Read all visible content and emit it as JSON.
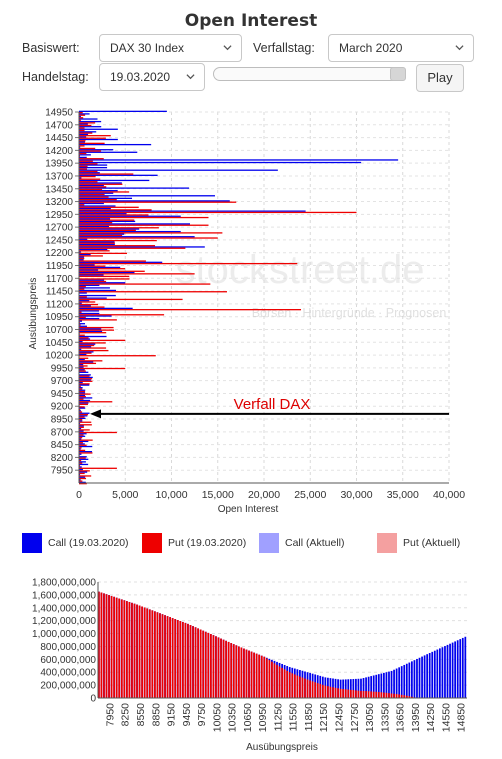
{
  "page": {
    "title": "Open Interest"
  },
  "controls": {
    "basiswert_label": "Basiswert:",
    "basiswert_value": "DAX 30 Index",
    "verfallstag_label": "Verfallstag:",
    "verfallstag_value": "March 2020",
    "handelstag_label": "Handelstag:",
    "handelstag_value": "19.03.2020",
    "slider_value": 1.0,
    "play_label": "Play"
  },
  "watermark": {
    "brand": "stockstreet.de",
    "tagline": "Börsen · Hintergründe · Prognosen"
  },
  "legend": [
    {
      "label": "Call (19.03.2020)",
      "color": "#0000ee"
    },
    {
      "label": "Put (19.03.2020)",
      "color": "#ee0000"
    },
    {
      "label": "Call (Aktuell)",
      "color": "#a0a0ff"
    },
    {
      "label": "Put (Aktuell)",
      "color": "#f4a0a0"
    }
  ],
  "colors": {
    "call": "#0000ee",
    "put": "#ee0000",
    "annotation": "#dd0000"
  },
  "chart_data": [
    {
      "type": "bar",
      "orientation": "horizontal",
      "title": "Open Interest",
      "xlabel": "Open Interest",
      "ylabel": "Ausübungspreis",
      "xlim": [
        0,
        40000
      ],
      "x_ticks": [
        "0",
        "5,000",
        "10,000",
        "15,000",
        "20,000",
        "25,000",
        "30,000",
        "35,000",
        "40,000"
      ],
      "y_ticks": [
        "14950",
        "14700",
        "14450",
        "14200",
        "13950",
        "13700",
        "13450",
        "13200",
        "12950",
        "12700",
        "12450",
        "12200",
        "11950",
        "11700",
        "11450",
        "11200",
        "10950",
        "10700",
        "10450",
        "10200",
        "9950",
        "9700",
        "9450",
        "9200",
        "8950",
        "8700",
        "8450",
        "8200",
        "7950"
      ],
      "grid": true,
      "annotation": {
        "text": "Verfall DAX",
        "value": 9050
      },
      "strike_step": 50,
      "strike_min": 7700,
      "strike_max": 14950,
      "notable": [
        {
          "strike": 14950,
          "call": 9500,
          "put": 400
        },
        {
          "strike": 14800,
          "call": 2000,
          "put": 200
        },
        {
          "strike": 14600,
          "call": 4200,
          "put": 600
        },
        {
          "strike": 14400,
          "call": 4200,
          "put": 700
        },
        {
          "strike": 14300,
          "call": 7800,
          "put": 600
        },
        {
          "strike": 14150,
          "call": 6300,
          "put": 800
        },
        {
          "strike": 14000,
          "call": 34500,
          "put": 1500
        },
        {
          "strike": 13950,
          "call": 30500,
          "put": 2000
        },
        {
          "strike": 13800,
          "call": 21500,
          "put": 2000
        },
        {
          "strike": 13700,
          "call": 8500,
          "put": 1800
        },
        {
          "strike": 13600,
          "call": 7600,
          "put": 2000
        },
        {
          "strike": 13450,
          "call": 11900,
          "put": 2500
        },
        {
          "strike": 13300,
          "call": 14700,
          "put": 3200
        },
        {
          "strike": 13200,
          "call": 16300,
          "put": 17000
        },
        {
          "strike": 13000,
          "call": 24500,
          "put": 30000
        },
        {
          "strike": 12900,
          "call": 11000,
          "put": 14000
        },
        {
          "strike": 12750,
          "call": 12000,
          "put": 14000
        },
        {
          "strike": 12600,
          "call": 11000,
          "put": 15500
        },
        {
          "strike": 12500,
          "call": 12500,
          "put": 15000
        },
        {
          "strike": 12300,
          "call": 13600,
          "put": 11500
        },
        {
          "strike": 12000,
          "call": 9000,
          "put": 23600
        },
        {
          "strike": 11800,
          "call": 6000,
          "put": 12500
        },
        {
          "strike": 11600,
          "call": 5000,
          "put": 14200
        },
        {
          "strike": 11450,
          "call": 4000,
          "put": 16000
        },
        {
          "strike": 11300,
          "call": 3000,
          "put": 11200
        },
        {
          "strike": 11100,
          "call": 5800,
          "put": 24000
        },
        {
          "strike": 11000,
          "call": 2200,
          "put": 9200
        },
        {
          "strike": 10500,
          "call": 1200,
          "put": 5000
        },
        {
          "strike": 10200,
          "call": 800,
          "put": 8300
        },
        {
          "strike": 9950,
          "call": 500,
          "put": 5000
        },
        {
          "strike": 9300,
          "call": 1200,
          "put": 3600
        },
        {
          "strike": 8700,
          "call": 500,
          "put": 4100
        },
        {
          "strike": 8000,
          "call": 300,
          "put": 4100
        }
      ],
      "series": [
        {
          "name": "Call (19.03.2020)"
        },
        {
          "name": "Put (19.03.2020)"
        }
      ]
    },
    {
      "type": "bar",
      "xlabel": "Ausübungspreis",
      "ylabel": "",
      "ylim": [
        0,
        1800000000
      ],
      "y_ticks": [
        "1,800,000,000",
        "1,600,000,000",
        "1,400,000,000",
        "1,200,000,000",
        "1,000,000,000",
        "800,000,000",
        "600,000,000",
        "400,000,000",
        "200,000,000",
        "0"
      ],
      "x_ticks": [
        "7950",
        "8250",
        "8550",
        "8850",
        "9150",
        "9450",
        "9750",
        "10050",
        "10350",
        "10650",
        "10950",
        "11250",
        "11550",
        "11850",
        "12150",
        "12450",
        "12750",
        "13050",
        "13350",
        "13650",
        "13950",
        "14250",
        "14550",
        "14850"
      ],
      "grid": true,
      "strike_min": 7750,
      "strike_max": 14950,
      "strike_step": 50,
      "curve": [
        {
          "strike": 7750,
          "value": 1650000000
        },
        {
          "strike": 8500,
          "value": 1450000000
        },
        {
          "strike": 9500,
          "value": 1150000000
        },
        {
          "strike": 10500,
          "value": 800000000
        },
        {
          "strike": 11500,
          "value": 480000000
        },
        {
          "strike": 12200,
          "value": 320000000
        },
        {
          "strike": 12500,
          "value": 285000000
        },
        {
          "strike": 12900,
          "value": 300000000
        },
        {
          "strike": 13500,
          "value": 420000000
        },
        {
          "strike": 14200,
          "value": 680000000
        },
        {
          "strike": 14950,
          "value": 950000000
        }
      ],
      "series": [
        {
          "name": "Put (19.03.2020)",
          "color": "#ee0000"
        },
        {
          "name": "Call (19.03.2020)",
          "color": "#0000ee"
        }
      ]
    }
  ]
}
